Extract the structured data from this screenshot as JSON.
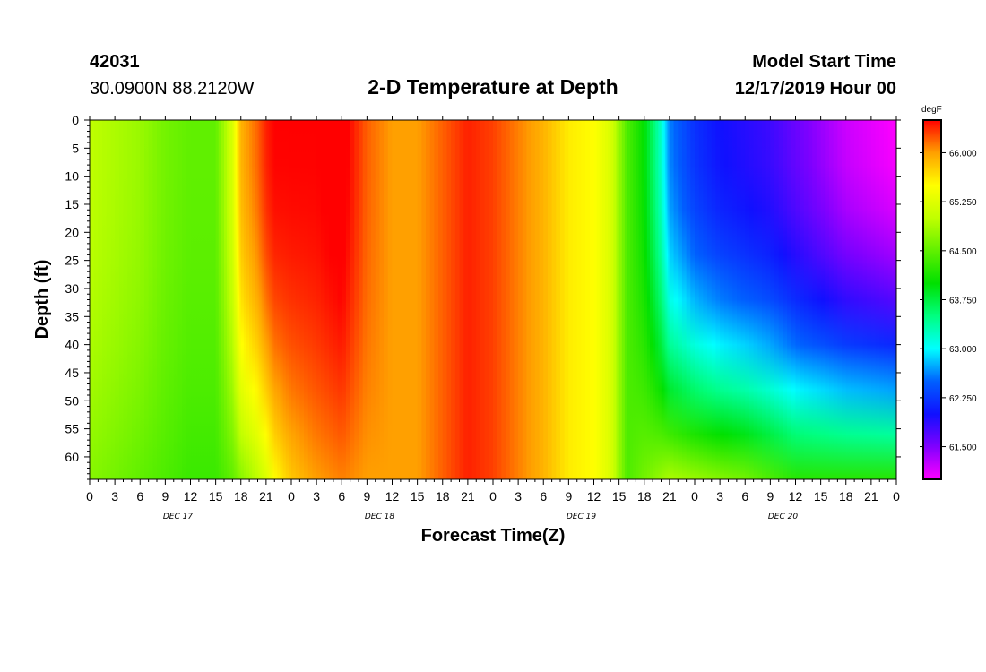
{
  "header": {
    "station_id": "42031",
    "location": "30.0900N 88.2120W",
    "title": "2-D Temperature at Depth",
    "start_label": "Model Start Time",
    "start_value": "12/17/2019 Hour 00"
  },
  "chart_data": {
    "type": "heatmap",
    "title": "2-D Temperature at Depth",
    "xlabel": "Forecast Time(Z)",
    "ylabel": "Depth (ft)",
    "x_hours_range": [
      0,
      96
    ],
    "x_tick_step_hours": 3,
    "x_tick_labels": [
      "0",
      "3",
      "6",
      "9",
      "12",
      "15",
      "18",
      "21",
      "0",
      "3",
      "6",
      "9",
      "12",
      "15",
      "18",
      "21",
      "0",
      "3",
      "6",
      "9",
      "12",
      "15",
      "18",
      "21",
      "0",
      "3",
      "6",
      "9",
      "12",
      "15",
      "18",
      "21",
      "0"
    ],
    "date_labels": [
      {
        "text": "DEC 17",
        "hour": 10.5
      },
      {
        "text": "DEC 18",
        "hour": 34.5
      },
      {
        "text": "DEC 19",
        "hour": 58.5
      },
      {
        "text": "DEC 20",
        "hour": 82.5
      }
    ],
    "y_range": [
      0,
      64
    ],
    "y_ticks": [
      0,
      5,
      10,
      15,
      20,
      25,
      30,
      35,
      40,
      45,
      50,
      55,
      60
    ],
    "colorbar": {
      "unit": "degF",
      "range": [
        61.0,
        66.5
      ],
      "tick_values": [
        61.5,
        62.25,
        63.0,
        63.75,
        64.5,
        65.25,
        66.0
      ],
      "tick_labels": [
        "61.500",
        "62.250",
        "63.000",
        "63.750",
        "64.500",
        "65.250",
        "66.000"
      ],
      "colors": [
        {
          "value": 61.0,
          "color": "#ff00ff"
        },
        {
          "value": 61.5,
          "color": "#8000ff"
        },
        {
          "value": 62.0,
          "color": "#1010ff"
        },
        {
          "value": 62.5,
          "color": "#0060ff"
        },
        {
          "value": 63.0,
          "color": "#00ffff"
        },
        {
          "value": 63.5,
          "color": "#00ff80"
        },
        {
          "value": 64.0,
          "color": "#00e000"
        },
        {
          "value": 64.5,
          "color": "#60f000"
        },
        {
          "value": 65.0,
          "color": "#c0ff00"
        },
        {
          "value": 65.5,
          "color": "#ffff00"
        },
        {
          "value": 66.0,
          "color": "#ffa000"
        },
        {
          "value": 66.5,
          "color": "#ff0000"
        }
      ]
    },
    "series": [
      {
        "hour": 0,
        "surface": 65.0,
        "bottom": 64.7
      },
      {
        "hour": 3,
        "surface": 64.9,
        "bottom": 64.6
      },
      {
        "hour": 6,
        "surface": 64.8,
        "bottom": 64.5
      },
      {
        "hour": 9,
        "surface": 64.6,
        "bottom": 64.4
      },
      {
        "hour": 12,
        "surface": 64.5,
        "bottom": 64.3
      },
      {
        "hour": 15,
        "surface": 64.5,
        "bottom": 64.3
      },
      {
        "hour": 17,
        "surface": 65.2,
        "bottom": 64.5
      },
      {
        "hour": 18,
        "surface": 65.9,
        "bottom": 64.7
      },
      {
        "hour": 20,
        "surface": 66.2,
        "bottom": 65.0
      },
      {
        "hour": 21,
        "surface": 66.4,
        "bottom": 65.2
      },
      {
        "hour": 22,
        "surface": 66.5,
        "bottom": 65.5
      },
      {
        "hour": 24,
        "surface": 66.5,
        "bottom": 65.8
      },
      {
        "hour": 27,
        "surface": 66.5,
        "bottom": 66.0
      },
      {
        "hour": 30,
        "surface": 66.6,
        "bottom": 66.1
      },
      {
        "hour": 33,
        "surface": 66.2,
        "bottom": 66.0
      },
      {
        "hour": 36,
        "surface": 66.0,
        "bottom": 66.0
      },
      {
        "hour": 39,
        "surface": 66.0,
        "bottom": 66.0
      },
      {
        "hour": 42,
        "surface": 66.2,
        "bottom": 66.2
      },
      {
        "hour": 45,
        "surface": 66.4,
        "bottom": 66.4
      },
      {
        "hour": 48,
        "surface": 66.3,
        "bottom": 66.3
      },
      {
        "hour": 51,
        "surface": 66.1,
        "bottom": 66.1
      },
      {
        "hour": 54,
        "surface": 65.9,
        "bottom": 65.9
      },
      {
        "hour": 57,
        "surface": 65.6,
        "bottom": 65.6
      },
      {
        "hour": 60,
        "surface": 65.5,
        "bottom": 65.5
      },
      {
        "hour": 62,
        "surface": 65.2,
        "bottom": 65.2
      },
      {
        "hour": 64,
        "surface": 64.4,
        "bottom": 64.4
      },
      {
        "hour": 66,
        "surface": 64.0,
        "bottom": 64.6
      },
      {
        "hour": 68,
        "surface": 63.2,
        "bottom": 64.8
      },
      {
        "hour": 69,
        "surface": 62.6,
        "bottom": 64.9
      },
      {
        "hour": 72,
        "surface": 62.2,
        "bottom": 64.8
      },
      {
        "hour": 75,
        "surface": 62.0,
        "bottom": 64.7
      },
      {
        "hour": 78,
        "surface": 61.9,
        "bottom": 64.6
      },
      {
        "hour": 81,
        "surface": 61.8,
        "bottom": 64.4
      },
      {
        "hour": 84,
        "surface": 61.6,
        "bottom": 64.2
      },
      {
        "hour": 87,
        "surface": 61.4,
        "bottom": 64.2
      },
      {
        "hour": 90,
        "surface": 61.2,
        "bottom": 64.2
      },
      {
        "hour": 93,
        "surface": 61.1,
        "bottom": 64.2
      },
      {
        "hour": 96,
        "surface": 61.0,
        "bottom": 64.2
      }
    ]
  }
}
